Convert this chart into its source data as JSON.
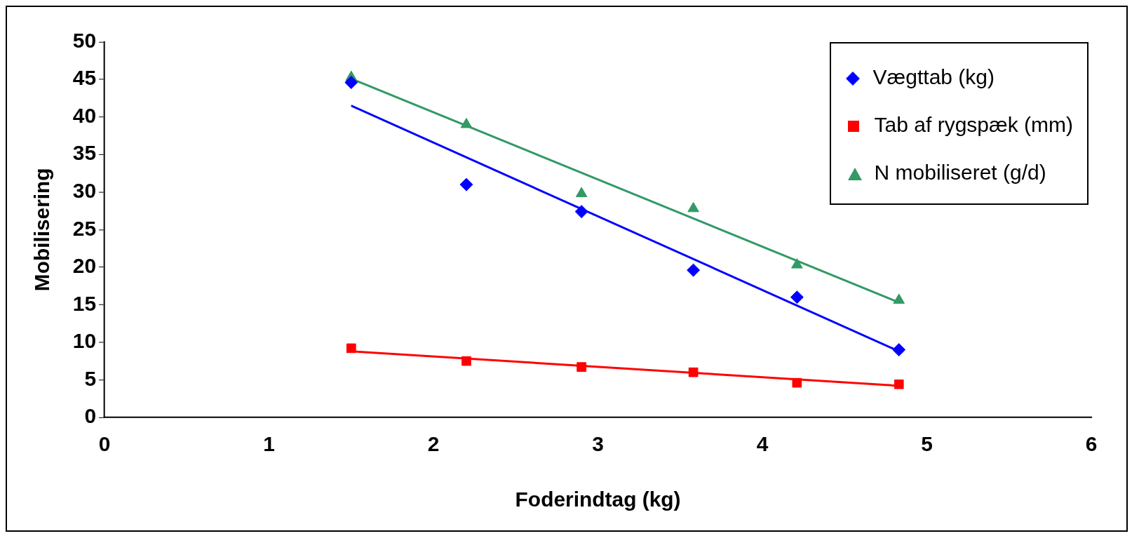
{
  "chart_data": {
    "type": "scatter",
    "xlabel": "Foderindtag (kg)",
    "ylabel": "Mobilisering",
    "xlim": [
      0,
      6
    ],
    "xticks": [
      0,
      1,
      2,
      3,
      4,
      5,
      6
    ],
    "ylim": [
      0,
      50
    ],
    "yticks": [
      0,
      5,
      10,
      15,
      20,
      25,
      30,
      35,
      40,
      45,
      50
    ],
    "grid": false,
    "legend": "top right",
    "series": [
      {
        "name": "Vægttab (kg)",
        "color": "#0000ff",
        "marker": "diamond",
        "x": [
          1.5,
          2.2,
          2.9,
          3.58,
          4.21,
          4.83
        ],
        "values": [
          44.6,
          31.0,
          27.4,
          19.6,
          16.0,
          9.0
        ]
      },
      {
        "name": "Tab af rygspæk (mm)",
        "color": "#ff0000",
        "marker": "square",
        "x": [
          1.5,
          2.2,
          2.9,
          3.58,
          4.21,
          4.83
        ],
        "values": [
          9.2,
          7.5,
          6.7,
          6.0,
          4.6,
          4.4
        ]
      },
      {
        "name": "N mobiliseret (g/d)",
        "color": "#339966",
        "marker": "triangle",
        "x": [
          1.5,
          2.2,
          2.9,
          3.58,
          4.21,
          4.83
        ],
        "values": [
          45.3,
          39.0,
          29.8,
          27.8,
          20.3,
          15.6
        ]
      },
      {
        "type": "line",
        "color": "#0000ff",
        "marker": "none",
        "x": [
          1.5,
          4.83
        ],
        "values": [
          41.5,
          8.8
        ]
      },
      {
        "type": "line",
        "color": "#ff0000",
        "marker": "none",
        "x": [
          1.5,
          4.83
        ],
        "values": [
          8.8,
          4.2
        ]
      },
      {
        "type": "line",
        "color": "#339966",
        "marker": "none",
        "x": [
          1.5,
          4.83
        ],
        "values": [
          45.1,
          15.3
        ]
      }
    ]
  }
}
